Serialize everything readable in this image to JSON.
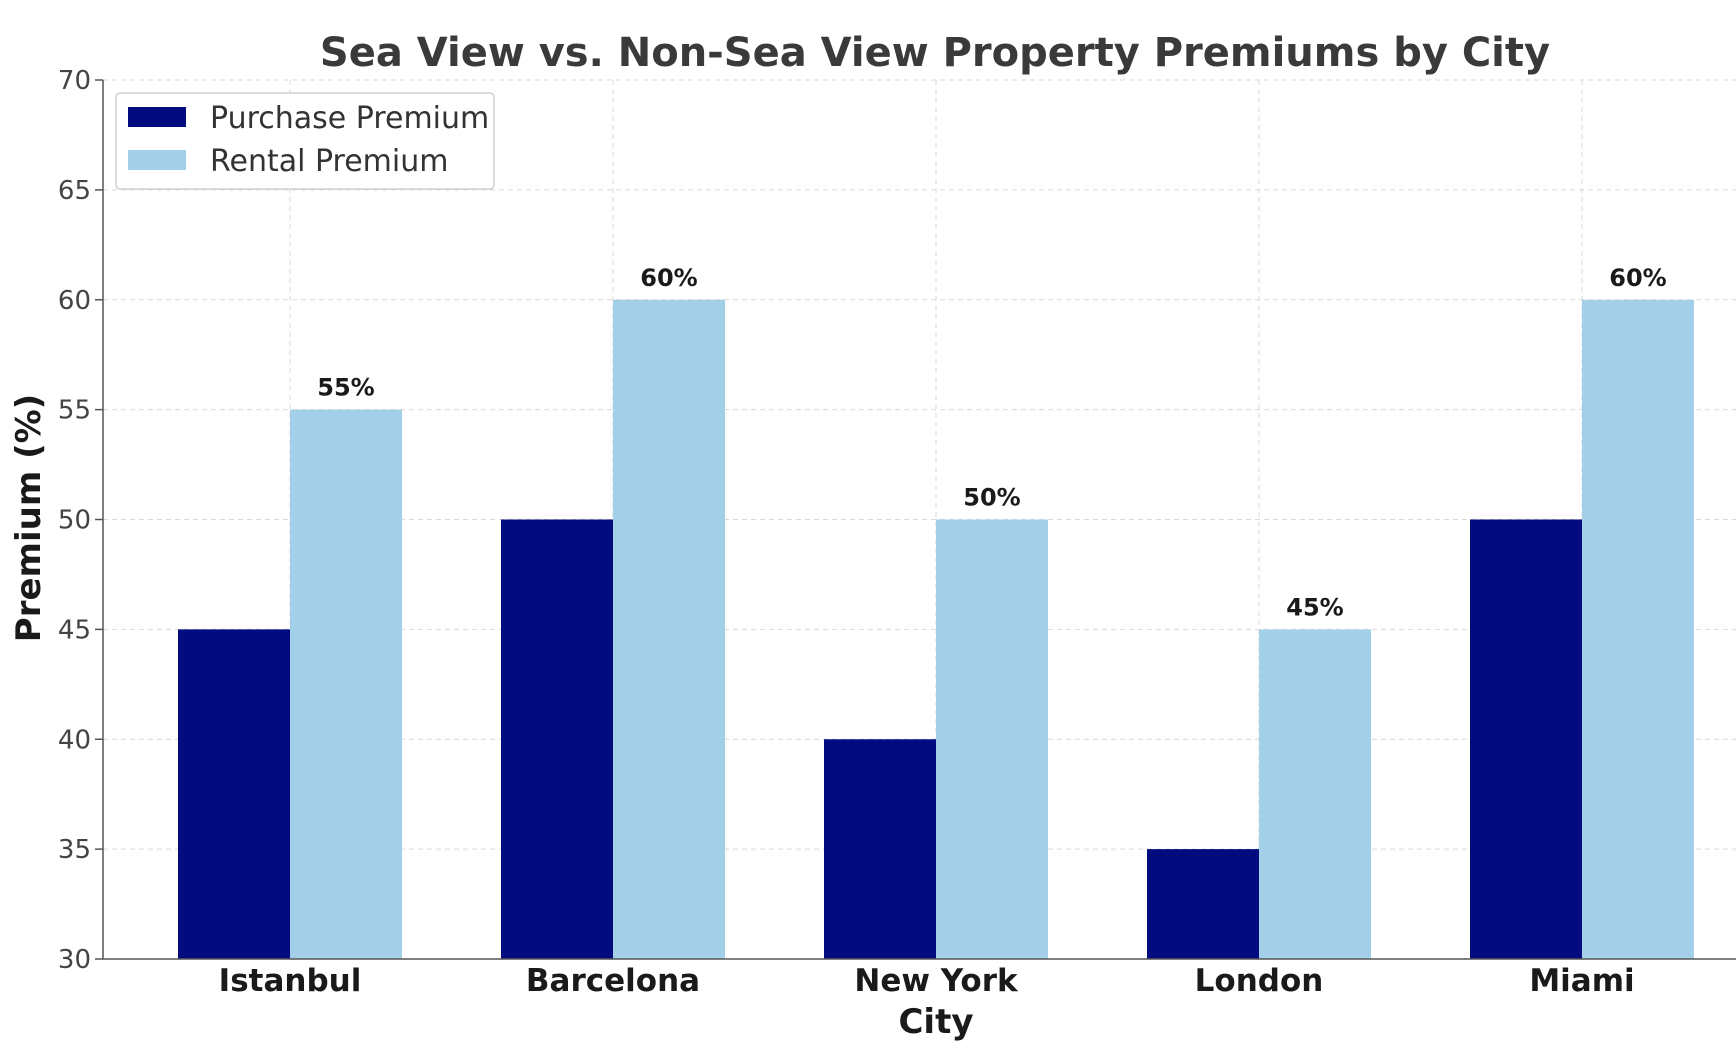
{
  "chart_data": {
    "type": "bar",
    "title": "Sea View vs. Non-Sea View Property Premiums by City",
    "xlabel": "City",
    "ylabel": "Premium (%)",
    "categories": [
      "Istanbul",
      "Barcelona",
      "New York",
      "London",
      "Miami"
    ],
    "series": [
      {
        "name": "Purchase Premium",
        "values": [
          45,
          50,
          40,
          35,
          50
        ],
        "color": "#020c7e",
        "labels": [
          "",
          "",
          "",
          "",
          ""
        ]
      },
      {
        "name": "Rental Premium",
        "values": [
          55,
          60,
          50,
          45,
          60
        ],
        "color": "#a3d0e8",
        "labels": [
          "55%",
          "60%",
          "50%",
          "45%",
          "60%"
        ]
      }
    ],
    "ylim": [
      30,
      70
    ],
    "yticks": [
      30,
      35,
      40,
      45,
      50,
      55,
      60,
      65,
      70
    ],
    "grid": true,
    "legend_position": "top-left"
  }
}
